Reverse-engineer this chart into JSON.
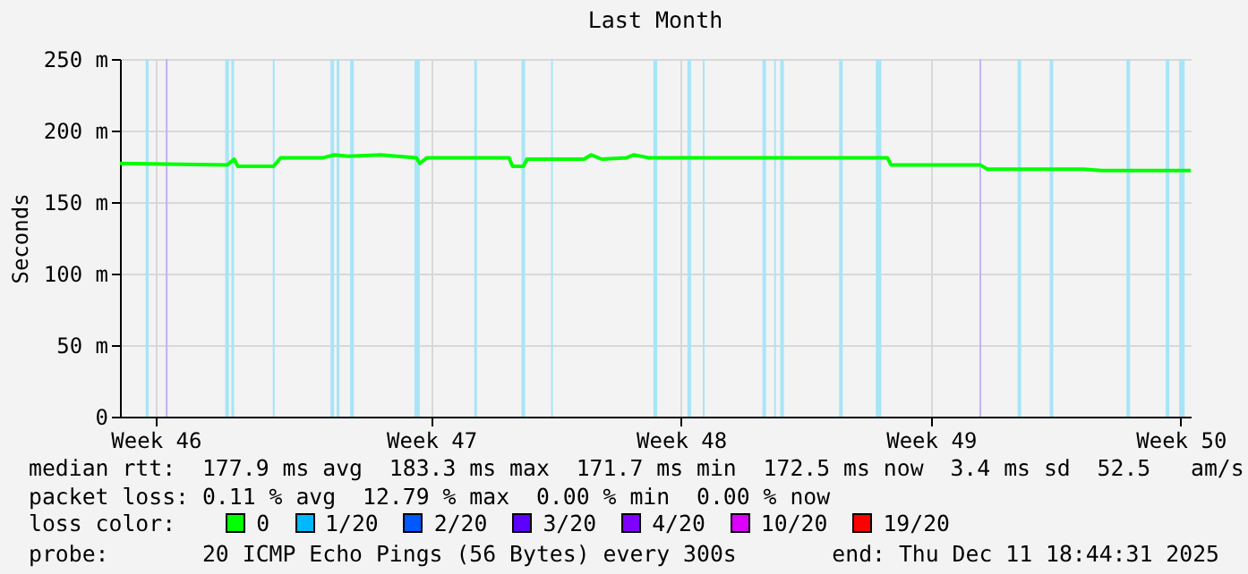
{
  "chart_data": {
    "type": "line",
    "title": "Last Month",
    "ylabel": "Seconds",
    "legend_title": "loss color:",
    "x": [
      "2025-11-11T18:44",
      "2025-11-14T19:00",
      "2025-11-14T23:30",
      "2025-11-15T02:00",
      "2025-11-16T02:00",
      "2025-11-16T06:45",
      "2025-11-17T11:30",
      "2025-11-17T18:45",
      "2025-11-18T04:20",
      "2025-11-19T02:00",
      "2025-11-20T02:00",
      "2025-11-20T04:20",
      "2025-11-20T09:10",
      "2025-11-22T16:20",
      "2025-11-22T18:45",
      "2025-11-23T02:00",
      "2025-11-23T04:20",
      "2025-11-24T18:45",
      "2025-11-24T23:30",
      "2025-11-25T06:45",
      "2025-11-25T23:30",
      "2025-11-26T04:20",
      "2025-11-26T14:00",
      "2025-12-03T06:45",
      "2025-12-03T09:10",
      "2025-12-05T21:10",
      "2025-12-06T02:00",
      "2025-12-08T18:45",
      "2025-12-09T06:45",
      "2025-12-11T18:44"
    ],
    "series": [
      {
        "name": "0",
        "color": "#00ff00",
        "values": [
          177,
          176,
          180,
          175,
          175,
          181,
          181,
          183,
          182,
          183,
          181,
          177,
          181,
          181,
          175,
          175,
          180,
          180,
          183,
          180,
          181,
          183,
          181,
          181,
          176,
          176,
          173,
          173,
          172,
          172
        ]
      },
      {
        "name": "1/20",
        "color": "#00b8ff",
        "values": [
          null,
          null,
          null,
          null,
          null,
          null,
          null,
          null,
          null,
          null,
          null,
          null,
          null,
          null,
          null,
          null,
          null,
          null,
          null,
          null,
          null,
          null,
          null,
          null,
          null,
          null,
          null,
          null,
          null,
          null
        ]
      },
      {
        "name": "2/20",
        "color": "#0059ff",
        "values": [
          null,
          null,
          null,
          null,
          null,
          null,
          null,
          null,
          null,
          null,
          null,
          null,
          null,
          null,
          null,
          null,
          null,
          null,
          null,
          null,
          null,
          null,
          null,
          null,
          null,
          null,
          null,
          null,
          null,
          null
        ]
      },
      {
        "name": "3/20",
        "color": "#5e00ff",
        "values": [
          null,
          null,
          null,
          null,
          null,
          null,
          null,
          null,
          null,
          null,
          null,
          null,
          null,
          null,
          null,
          null,
          null,
          null,
          null,
          null,
          null,
          null,
          null,
          null,
          null,
          null,
          null,
          null,
          null,
          null
        ]
      },
      {
        "name": "4/20",
        "color": "#7e00ff",
        "values": [
          null,
          null,
          null,
          null,
          null,
          null,
          null,
          null,
          null,
          null,
          null,
          null,
          null,
          null,
          null,
          null,
          null,
          null,
          null,
          null,
          null,
          null,
          null,
          null,
          null,
          null,
          null,
          null,
          null,
          null
        ]
      },
      {
        "name": "10/20",
        "color": "#dd00ff",
        "values": [
          null,
          null,
          null,
          null,
          null,
          null,
          null,
          null,
          null,
          null,
          null,
          null,
          null,
          null,
          null,
          null,
          null,
          null,
          null,
          null,
          null,
          null,
          null,
          null,
          null,
          null,
          null,
          null,
          null,
          null
        ]
      },
      {
        "name": "19/20",
        "color": "#ff0000",
        "values": [
          null,
          null,
          null,
          null,
          null,
          null,
          null,
          null,
          null,
          null,
          null,
          null,
          null,
          null,
          null,
          null,
          null,
          null,
          null,
          null,
          null,
          null,
          null,
          null,
          null,
          null,
          null,
          null,
          null,
          null
        ]
      }
    ],
    "xlim": [
      "2025-11-11T18:44",
      "2025-12-11T18:44"
    ],
    "xticks": [
      {
        "value": "2025-11-12T18:45",
        "label": "Week 46"
      },
      {
        "value": "2025-11-20T12:00",
        "label": "Week 47"
      },
      {
        "value": "2025-11-27T12:00",
        "label": "Week 48"
      },
      {
        "value": "2025-12-04T12:00",
        "label": "Week 49"
      },
      {
        "value": "2025-12-11T12:00",
        "label": "Week 50"
      }
    ],
    "ylim": [
      0,
      250
    ],
    "yticks": [
      0,
      {
        "value": 50,
        "label": "50 m"
      },
      {
        "value": 100,
        "label": "100 m"
      },
      {
        "value": 150,
        "label": "150 m"
      },
      {
        "value": 200,
        "label": "200 m"
      },
      {
        "value": 250,
        "label": "250 m"
      }
    ],
    "bands": [
      {
        "axis": "x",
        "from": "2025-11-12T12:00",
        "to": "2025-11-12T14:00",
        "color": "#a8e4f8"
      },
      {
        "axis": "x",
        "from": "2025-11-13T01:30",
        "to": "2025-11-13T02:45",
        "color": "#c4b0fa"
      },
      {
        "axis": "x",
        "from": "2025-11-14T17:30",
        "to": "2025-11-14T20:00",
        "color": "#a8e4f8"
      },
      {
        "axis": "x",
        "from": "2025-11-14T21:40",
        "to": "2025-11-14T23:30",
        "color": "#a8e4f8"
      },
      {
        "axis": "x",
        "from": "2025-11-16T01:30",
        "to": "2025-11-16T02:45",
        "color": "#a8e4f8"
      },
      {
        "axis": "x",
        "from": "2025-11-17T16:20",
        "to": "2025-11-17T18:45",
        "color": "#a8e4f8"
      },
      {
        "axis": "x",
        "from": "2025-11-17T20:25",
        "to": "2025-11-17T22:20",
        "color": "#a8e4f8"
      },
      {
        "axis": "x",
        "from": "2025-11-18T05:30",
        "to": "2025-11-18T08:00",
        "color": "#a8e4f8"
      },
      {
        "axis": "x",
        "from": "2025-11-20T00:45",
        "to": "2025-11-20T04:20",
        "color": "#a8e4f8"
      },
      {
        "axis": "x",
        "from": "2025-11-21T17:00",
        "to": "2025-11-21T18:45",
        "color": "#a8e4f8"
      },
      {
        "axis": "x",
        "from": "2025-11-23T00:45",
        "to": "2025-11-23T03:10",
        "color": "#a8e4f8"
      },
      {
        "axis": "x",
        "from": "2025-11-23T20:40",
        "to": "2025-11-23T21:50",
        "color": "#a8e4f8"
      },
      {
        "axis": "x",
        "from": "2025-11-26T17:30",
        "to": "2025-11-26T20:00",
        "color": "#a8e4f8"
      },
      {
        "axis": "x",
        "from": "2025-11-27T16:20",
        "to": "2025-11-27T18:45",
        "color": "#a8e4f8"
      },
      {
        "axis": "x",
        "from": "2025-11-28T02:40",
        "to": "2025-11-28T03:50",
        "color": "#a8e4f8"
      },
      {
        "axis": "x",
        "from": "2025-11-29T18:45",
        "to": "2025-11-29T21:10",
        "color": "#a8e4f8"
      },
      {
        "axis": "x",
        "from": "2025-11-30T02:40",
        "to": "2025-11-30T03:50",
        "color": "#a8e4f8"
      },
      {
        "axis": "x",
        "from": "2025-11-30T06:45",
        "to": "2025-11-30T09:10",
        "color": "#a8e4f8"
      },
      {
        "axis": "x",
        "from": "2025-12-01T22:20",
        "to": "2025-12-02T00:45",
        "color": "#a8e4f8"
      },
      {
        "axis": "x",
        "from": "2025-12-02T23:00",
        "to": "2025-12-03T02:40",
        "color": "#a8e4f8"
      },
      {
        "axis": "x",
        "from": "2025-12-05T20:40",
        "to": "2025-12-05T21:50",
        "color": "#c4b0fa"
      },
      {
        "axis": "x",
        "from": "2025-12-06T22:20",
        "to": "2025-12-07T00:45",
        "color": "#a8e4f8"
      },
      {
        "axis": "x",
        "from": "2025-12-07T19:55",
        "to": "2025-12-07T22:20",
        "color": "#a8e4f8"
      },
      {
        "axis": "x",
        "from": "2025-12-09T23:30",
        "to": "2025-12-10T02:00",
        "color": "#a8e4f8"
      },
      {
        "axis": "x",
        "from": "2025-12-11T01:55",
        "to": "2025-12-11T04:20",
        "color": "#a8e4f8"
      },
      {
        "axis": "x",
        "from": "2025-12-11T11:00",
        "to": "2025-12-11T14:40",
        "color": "#a8e4f8"
      }
    ],
    "grid": true,
    "legend": "bottom",
    "marker": "none",
    "line_style": "solid",
    "annotations": [
      "median rtt:  177.9 ms avg  183.3 ms max  171.7 ms min  172.5 ms now  3.4 ms sd  52.5   am/s",
      "packet loss: 0.11 % avg  12.79 % max  0.00 % min  0.00 % now",
      "probe:       20 ICMP Echo Pings (56 Bytes) every 300s",
      "end: Thu Dec 11 18:44:31 2025"
    ]
  }
}
